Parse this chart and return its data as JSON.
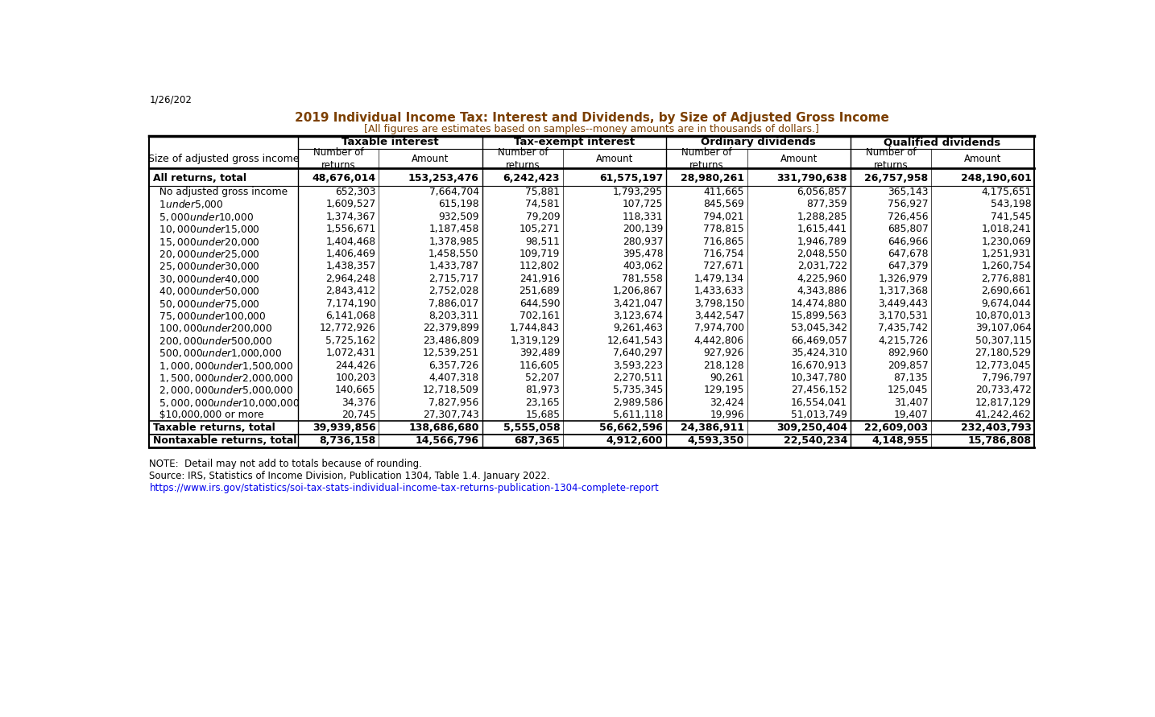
{
  "title1": "2019 Individual Income Tax: Interest and Dividends, by Size of Adjusted Gross Income",
  "title2": "[All figures are estimates based on samples--money amounts are in thousands of dollars.]",
  "date_label": "1/26/202",
  "col_groups": [
    "Taxable interest",
    "Tax-exempt interest",
    "Ordinary dividends",
    "Qualified dividends"
  ],
  "col_subheaders": [
    "Number of\nreturns",
    "Amount",
    "Number of\nreturns",
    "Amount",
    "Number of\nreturns",
    "Amount",
    "Number of\nreturns",
    "Amount"
  ],
  "row_header": "Size of adjusted gross income",
  "rows": [
    {
      "label": "All returns, total",
      "bold": true,
      "values": [
        "48,676,014",
        "153,253,476",
        "6,242,423",
        "61,575,197",
        "28,980,261",
        "331,790,638",
        "26,757,958",
        "248,190,601"
      ]
    },
    {
      "label": "  No adjusted gross income",
      "bold": false,
      "values": [
        "652,303",
        "7,664,704",
        "75,881",
        "1,793,295",
        "411,665",
        "6,056,857",
        "365,143",
        "4,175,651"
      ]
    },
    {
      "label": "  $1 under $5,000",
      "bold": false,
      "values": [
        "1,609,527",
        "615,198",
        "74,581",
        "107,725",
        "845,569",
        "877,359",
        "756,927",
        "543,198"
      ]
    },
    {
      "label": "  $5,000 under $10,000",
      "bold": false,
      "values": [
        "1,374,367",
        "932,509",
        "79,209",
        "118,331",
        "794,021",
        "1,288,285",
        "726,456",
        "741,545"
      ]
    },
    {
      "label": "  $10,000 under $15,000",
      "bold": false,
      "values": [
        "1,556,671",
        "1,187,458",
        "105,271",
        "200,139",
        "778,815",
        "1,615,441",
        "685,807",
        "1,018,241"
      ]
    },
    {
      "label": "  $15,000 under $20,000",
      "bold": false,
      "values": [
        "1,404,468",
        "1,378,985",
        "98,511",
        "280,937",
        "716,865",
        "1,946,789",
        "646,966",
        "1,230,069"
      ]
    },
    {
      "label": "  $20,000 under $25,000",
      "bold": false,
      "values": [
        "1,406,469",
        "1,458,550",
        "109,719",
        "395,478",
        "716,754",
        "2,048,550",
        "647,678",
        "1,251,931"
      ]
    },
    {
      "label": "  $25,000 under $30,000",
      "bold": false,
      "values": [
        "1,438,357",
        "1,433,787",
        "112,802",
        "403,062",
        "727,671",
        "2,031,722",
        "647,379",
        "1,260,754"
      ]
    },
    {
      "label": "  $30,000 under $40,000",
      "bold": false,
      "values": [
        "2,964,248",
        "2,715,717",
        "241,916",
        "781,558",
        "1,479,134",
        "4,225,960",
        "1,326,979",
        "2,776,881"
      ]
    },
    {
      "label": "  $40,000 under $50,000",
      "bold": false,
      "values": [
        "2,843,412",
        "2,752,028",
        "251,689",
        "1,206,867",
        "1,433,633",
        "4,343,886",
        "1,317,368",
        "2,690,661"
      ]
    },
    {
      "label": "  $50,000 under $75,000",
      "bold": false,
      "values": [
        "7,174,190",
        "7,886,017",
        "644,590",
        "3,421,047",
        "3,798,150",
        "14,474,880",
        "3,449,443",
        "9,674,044"
      ]
    },
    {
      "label": "  $75,000 under $100,000",
      "bold": false,
      "values": [
        "6,141,068",
        "8,203,311",
        "702,161",
        "3,123,674",
        "3,442,547",
        "15,899,563",
        "3,170,531",
        "10,870,013"
      ]
    },
    {
      "label": "  $100,000 under $200,000",
      "bold": false,
      "values": [
        "12,772,926",
        "22,379,899",
        "1,744,843",
        "9,261,463",
        "7,974,700",
        "53,045,342",
        "7,435,742",
        "39,107,064"
      ]
    },
    {
      "label": "  $200,000 under $500,000",
      "bold": false,
      "values": [
        "5,725,162",
        "23,486,809",
        "1,319,129",
        "12,641,543",
        "4,442,806",
        "66,469,057",
        "4,215,726",
        "50,307,115"
      ]
    },
    {
      "label": "  $500,000 under $1,000,000",
      "bold": false,
      "values": [
        "1,072,431",
        "12,539,251",
        "392,489",
        "7,640,297",
        "927,926",
        "35,424,310",
        "892,960",
        "27,180,529"
      ]
    },
    {
      "label": "  $1,000,000 under $1,500,000",
      "bold": false,
      "values": [
        "244,426",
        "6,357,726",
        "116,605",
        "3,593,223",
        "218,128",
        "16,670,913",
        "209,857",
        "12,773,045"
      ]
    },
    {
      "label": "  $1,500,000 under $2,000,000",
      "bold": false,
      "values": [
        "100,203",
        "4,407,318",
        "52,207",
        "2,270,511",
        "90,261",
        "10,347,780",
        "87,135",
        "7,796,797"
      ]
    },
    {
      "label": "  $2,000,000 under $5,000,000",
      "bold": false,
      "values": [
        "140,665",
        "12,718,509",
        "81,973",
        "5,735,345",
        "129,195",
        "27,456,152",
        "125,045",
        "20,733,472"
      ]
    },
    {
      "label": "  $5,000,000 under $10,000,000",
      "bold": false,
      "values": [
        "34,376",
        "7,827,956",
        "23,165",
        "2,989,586",
        "32,424",
        "16,554,041",
        "31,407",
        "12,817,129"
      ]
    },
    {
      "label": "  $10,000,000 or more",
      "bold": false,
      "values": [
        "20,745",
        "27,307,743",
        "15,685",
        "5,611,118",
        "19,996",
        "51,013,749",
        "19,407",
        "41,242,462"
      ]
    },
    {
      "label": "Taxable returns, total",
      "bold": true,
      "values": [
        "39,939,856",
        "138,686,680",
        "5,555,058",
        "56,662,596",
        "24,386,911",
        "309,250,404",
        "22,609,003",
        "232,403,793"
      ]
    },
    {
      "label": "Nontaxable returns, total",
      "bold": true,
      "values": [
        "8,736,158",
        "14,566,796",
        "687,365",
        "4,912,600",
        "4,593,350",
        "22,540,234",
        "4,148,955",
        "15,786,808"
      ]
    }
  ],
  "note": "NOTE:  Detail may not add to totals because of rounding.",
  "source": "Source: IRS, Statistics of Income Division, Publication 1304, Table 1.4. January 2022.",
  "url": "https://www.irs.gov/statistics/soi-tax-stats-individual-income-tax-returns-publication-1304-complete-report",
  "bg_color": "#ffffff",
  "text_color": "#000000",
  "line_color": "#000000",
  "title_color": "#7B3F00",
  "url_color": "#0000EE"
}
